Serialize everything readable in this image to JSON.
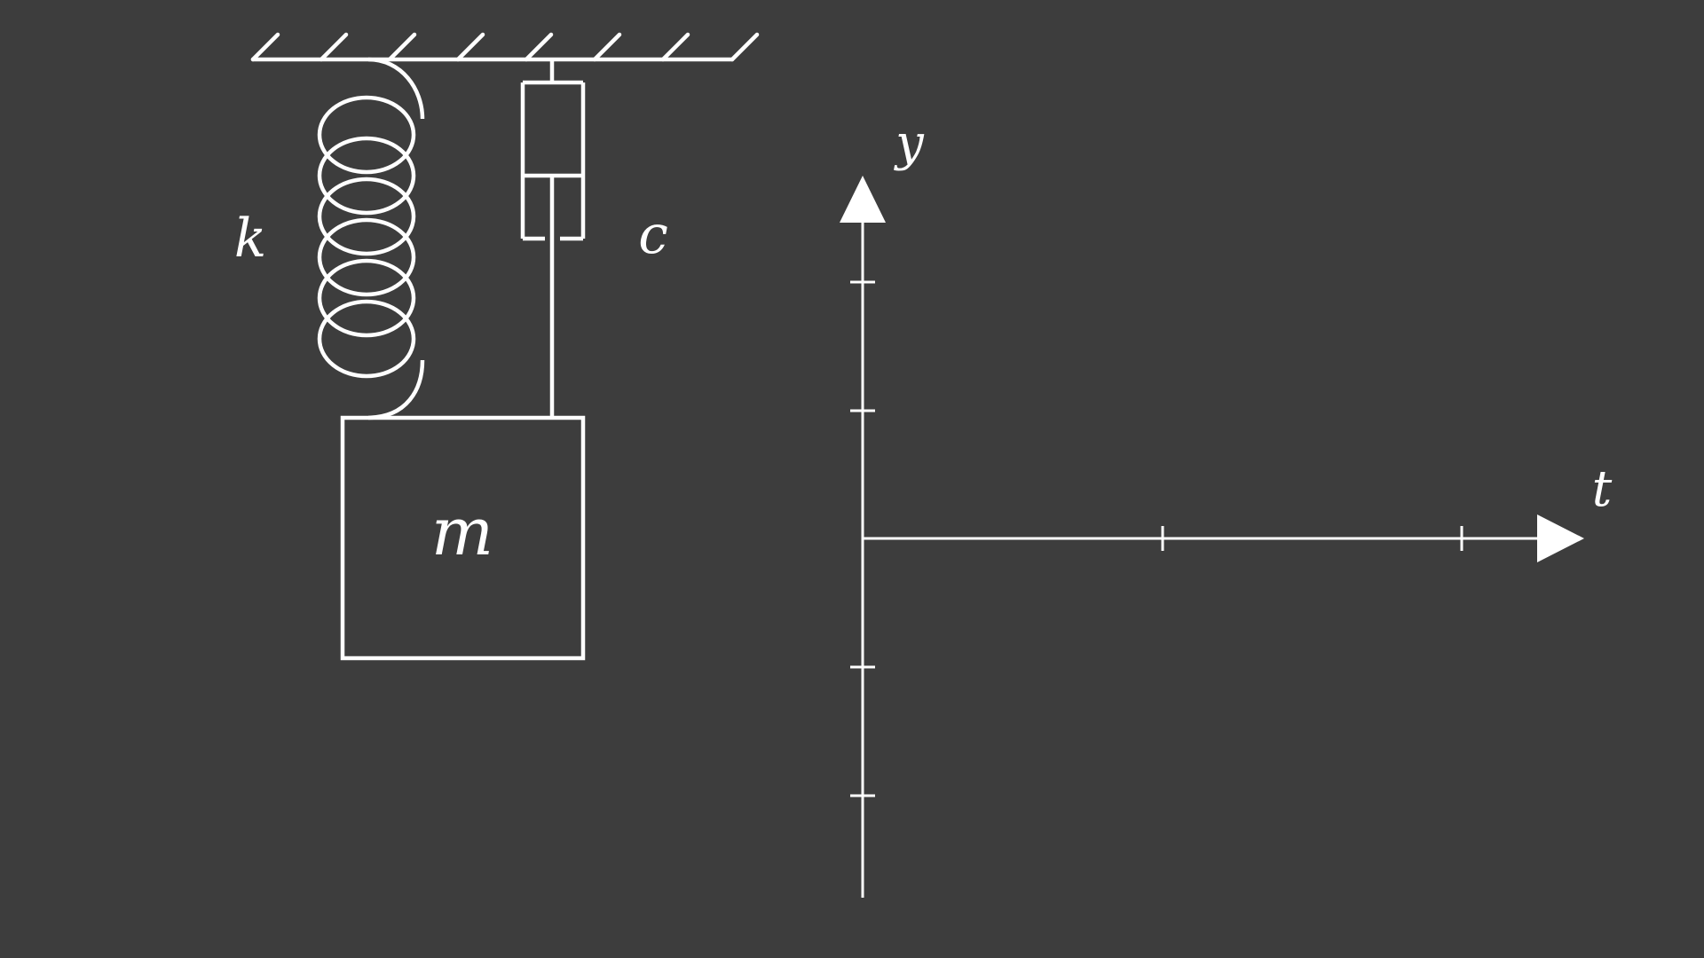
{
  "diagram": {
    "labels": {
      "spring": "k",
      "damper": "c",
      "mass": "m",
      "y_axis": "y",
      "t_axis": "t"
    },
    "colors": {
      "background": "#3d3d3d",
      "stroke": "#ffffff"
    }
  }
}
